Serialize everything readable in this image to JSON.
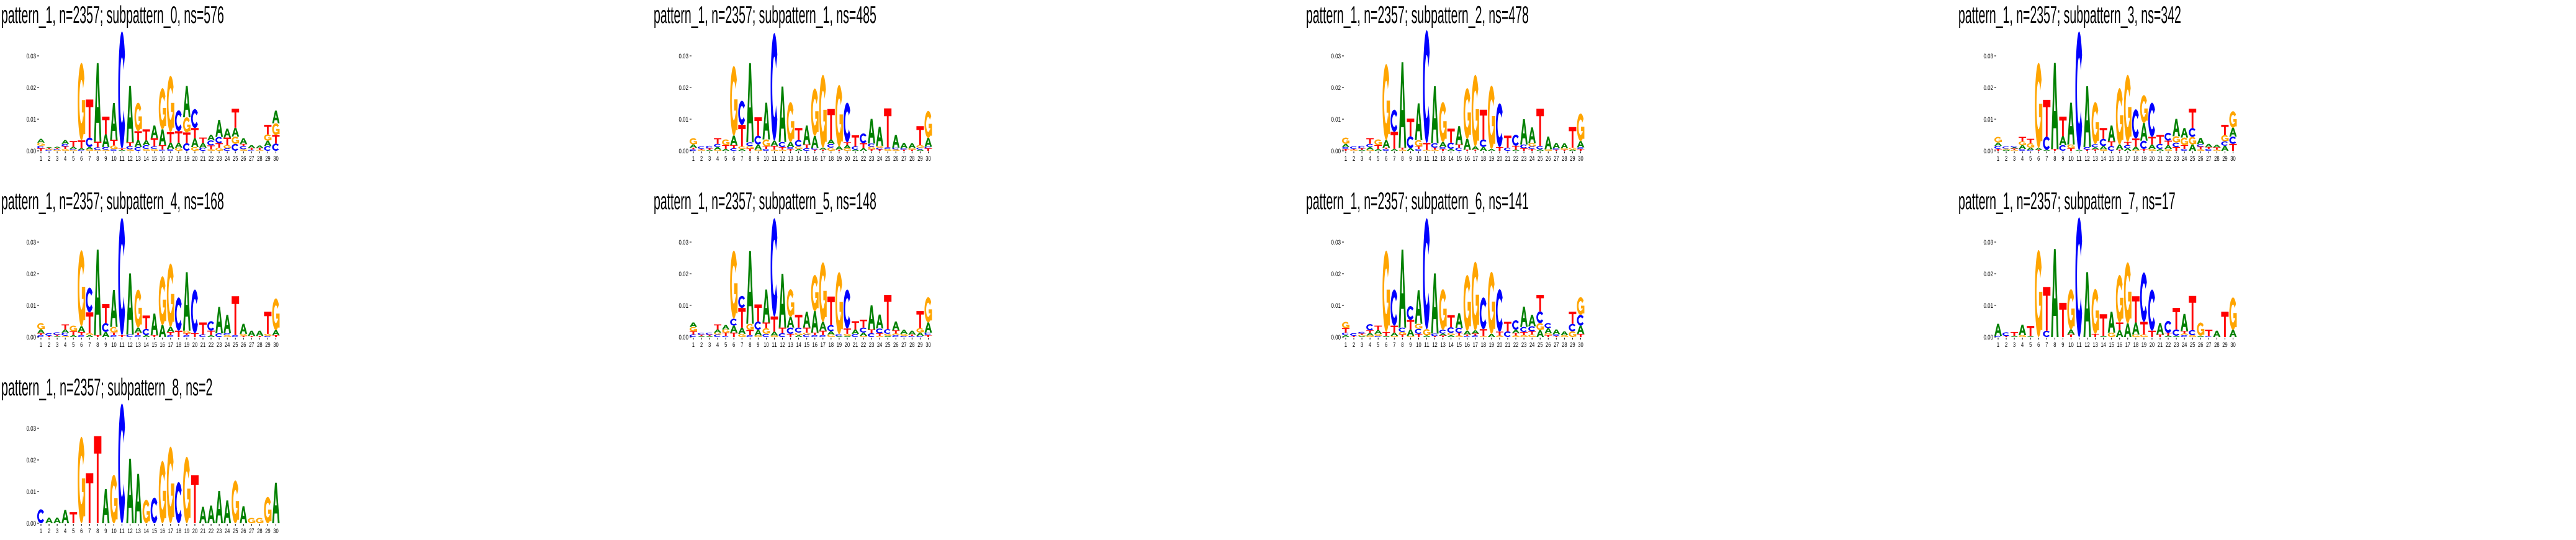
{
  "chart_data": {
    "type": "bar",
    "subtype": "stacked sequence logo",
    "value_unit": 0.001,
    "ylim": [
      0,
      0.038
    ],
    "yticks": [
      {
        "value": 0.0,
        "label": "0.00"
      },
      {
        "value": 0.01,
        "label": "0.01"
      },
      {
        "value": 0.02,
        "label": "0.02"
      },
      {
        "value": 0.03,
        "label": "0.03"
      }
    ],
    "xticks": [
      "1",
      "2",
      "3",
      "4",
      "5",
      "6",
      "7",
      "8",
      "9",
      "10",
      "11",
      "12",
      "13",
      "14",
      "15",
      "16",
      "17",
      "18",
      "19",
      "20",
      "21",
      "22",
      "23",
      "24",
      "25",
      "26",
      "27",
      "28",
      "29",
      "30"
    ],
    "colors": {
      "A": "#008000",
      "C": "#0000ff",
      "G": "#ffa500",
      "T": "#ff0000"
    },
    "panels": [
      {
        "title": "pattern_1, n=2357; subpattern_0, ns=576",
        "stacks": [
          "T0.8,C0.8,G1,A1.2",
          "C0.3,G0.3,T0.3,A0.3",
          "G0.3,C0.3,T0.3,A0.4",
          "G0.6,T0.8,C0.8,A1.2",
          "G0.3,C0.3,A0.7,T1.8",
          "C0.3,A0.5,T2.5,G24.5",
          "G0.5,A0.7,C3,T12",
          "G0.3,C0.8,T1.8,A24.8",
          "G0.4,C0.8,A4,T5.6",
          "C0.5,G1.2,T1.8,A11.6",
          "A0.3,T0.4,C37",
          "G0.5,C1,T1.2,A17.8",
          "C1.2,A2.2,T2.8,G9",
          "G0.6,C1.2,A1.5,T3.5",
          "G0.6,C0.8,T2.6,A4",
          "C0.4,T1.4,A5,G13",
          "C0.6,A2,T3.3,G17.8",
          "G1,A1.6,T3.6,C6.6",
          "C2.4,T3.4,G4.8,A9.9",
          "G1.2,A2.8,T3.2,C6",
          "C1,A1.5,T1.7",
          "G0.5,T1.2,C1.6,A1.8",
          "G1,T1.4,C2,A5.4",
          "C0.8,G1,T2.4,A2.8",
          "C2.2,G2.3,A2.8,T6",
          "G0.5,C1,T0.7,A1.8",
          "C0.3,T0.6,A0.9",
          "G0.3,T0.6,A0.8",
          "C1.5,A1.7,G2,T3",
          "C2.3,T2.7,G3.7,A4"
        ]
      },
      {
        "title": "pattern_1, n=2357; subpattern_1, ns=485",
        "stacks": [
          "C0.5,T0.5,A1,G2",
          "G0.3,T0.3,C0.8",
          "A0.3,T0.5,C0.8",
          "G0.4,A0.8,C1,T1.8",
          "A0.6,T1.2,G1.8",
          "C0.8,T1,A3,G22",
          "A0.6,G0.8,T6.8,C7.6",
          "T0.7,G0.8,C1.2,A25",
          "G0.4,A1.6,C2.8,T5.8",
          "C0.6,T0.8,G2.2,A11.6",
          "G0.4,T1.2,A1.6,C34",
          "G0.4,T0.8,C1.6,A17.5",
          "T0.6,C0.6,A1.6,G12.6",
          "A0.6,G0.8,C2,T3.8",
          "C0.8,T1.2,A6",
          "T0.4,C0.5,A3.8,G15",
          "T0.4,A0.6,G23",
          "G1,C1.2,A1.4,T9.6",
          "T0.4,A1,G19.4",
          "G0.8,A1,T0.9,C12.5",
          "A0.4,C1,T3.5",
          "A0.8,T1.6,C3.1",
          "T0.5,G0.8,C1,A7.8",
          "T0.5,C0.5,G0.6,A6",
          "G0.6,C0.5,T12.3",
          "G0.5,C0.5,A4",
          "T0.4,C0.4,A1.7",
          "T0.4,G0.4,A1.6",
          "A0.4,C0.6,G0.8,T6",
          "T0.8,C0.5,A2.8,G8.5"
        ]
      },
      {
        "title": "pattern_1, n=2357; subpattern_2, ns=478",
        "stacks": [
          "T0.6,C0.6,A1,G2",
          "G0.3,T0.3,C0.8",
          "A0.3,T0.5,C0.8",
          "G0.4,A0.8,C1,T1.8",
          "A0.6,T1.2,G1.8",
          "C0.6,T0.4,A2.4,G24",
          "A0.6,T5.4,C7",
          "G0.4,T0.6,A27",
          "A0.8,C3.8,T5.6",
          "C0.6,T0.8,G2,A11.6",
          "G0.3,T2.2,C35.6",
          "G0.4,T0.6,C1.4,A18",
          "T0.6,C0.6,A1.6,G12.6",
          "A0.6,C2,T4.4",
          "C1,T1,A5.8",
          "T0.4,A3.4,G16",
          "T0.4,A1,G22.6",
          "A1.2,C2.4,T9.4",
          "A0.6,G20",
          "T1.2,C13.8",
          "C1,T3.8",
          "A0.4,T1.2,C3.5",
          "T0.8,C1.2,A8",
          "T0.6,C0.8,G1,A5",
          "A0.5,C1,T11.8",
          "G0.5,A4",
          "T0.4,C0.4,A1.7",
          "T0.4,G0.4,A1.6",
          "A0.4,G0.6,T6.5",
          "T0.6,C0.5,A2,G8.7"
        ]
      },
      {
        "title": "pattern_1, n=2357; subpattern_3, ns=342",
        "stacks": [
          "T0.6,C1,A1,G1.8",
          "A0.4,G0.3,C0.7",
          "G0.3,T0.4,A0.4,C0.4",
          "C0.6,A1.2,G1.2,T1.4",
          "C0.3,A0.7,G1.4,T1.4",
          "T0.3,A0.6,G26.9",
          "A0.3,C4.2,T11.6",
          "T0.6,A27.2",
          "C1.8,A2.8,T6.2",
          "T0.8,G1.2,A13.2",
          "A0.3,C37.4",
          "T0.4,C0.8,A19.2",
          "T0.5,A0.6,C1,G13.3",
          "G0.5,A1,C2.3,T3.4",
          "C1.5,T1.5,A5",
          "T0.4,A1.6,G17.8",
          "A0.8,C1,T1,G21.2",
          "G0.3,A1,T2.6,C9.2",
          "T0.6,C2.6,A5.6,G8.8",
          "G0.6,A1.4,T2.4,C10.8",
          "A0.6,C1.6,T2.8",
          "G0.6,A1.2,T1.4,C2.5",
          "T1.2,C1.4,G2,A5.5",
          "C0.6,T1.2,G2.4,A3",
          "A2,G2.4,C2.8,T6.1",
          "G0.5,T0.8,C0.8,A2",
          "C0.6,T0.6,A1",
          "G0.4,T0.7,A0.8",
          "A1.6,C1.4,G2,T3.2",
          "T2.2,C2.3,A2.8,G5.2"
        ]
      },
      {
        "title": "pattern_1, n=2357; subpattern_4, ns=168",
        "stacks": [
          "C0.6,T0.6,A1.2,G2",
          "T0.4,C0.8",
          "A0.3,T0.4,C0.8",
          "G0.4,C1,A1,T1.6",
          "A0.6,T1.2,G1.8",
          "C0.6,T1,A1.8,G24",
          "A0.6,G0.6,T6.6,C7.8",
          "T0.6,A27",
          "A1.6,C2.8,T6",
          "C0.6,T0.8,G1.8,A11.7",
          "T0.6,C37",
          "C0.8,A19.3",
          "C0.6,T0.8,A1.6,G12",
          "A0.6,C2,T4.2",
          "T0.6,A6.8",
          "A3.8,G15.4",
          "C0.6,T1,A1.6,G20",
          "T2,C10.5",
          "C0.6,T0.6,G0.8,A18.5",
          "T1.2,C13.8",
          "C0.8,T3.8",
          "A0.6,T1.4,C3",
          "C1.2,A8.3",
          "G0.6,C0.6,A5.8",
          "C0.6,T12.3",
          "T0.4,G0.6,A3.2",
          "T0.4,A1.6",
          "T0.4,A1.6",
          "C0.4,G0.6,T7",
          "T0.6,A1.6,G10"
        ]
      },
      {
        "title": "pattern_1, n=2357; subpattern_5, ns=148",
        "stacks": [
          "C0.8,T1,G1.4,A1.4",
          "A0.3,T0.4,C0.6",
          "A0.3,T0.4,C0.7",
          "C0.8,G0.6,A1,T1.6",
          "C0.4,T1,G1,A1.4",
          "T1.4,A2.2,C2.2,G21.5",
          "G1,A2,T6.2,C3.8",
          "C0.6,T1.6,G2,A23",
          "G0.5,A1.8,C2.6,T5.4",
          "C1,G1.8,T1.8,A10.4",
          "G0.5,A1.2,T4.8,C31",
          "C1.2,T1.8,A17",
          "T1,C2,A3.4,G8.7",
          "A0.6,G0.8,C1.6,T4",
          "C0.8,G0.6,T1.6,A5",
          "C0.6,T0.8,A6.8,G11.4",
          "C0.6,T1.4,A2.8,G18.8",
          "G0.8,A1,C2,T9",
          "A0.3,C0.6,G19.6",
          "A0.4,G0.6,T1.7,C12.3",
          "C1,A1.4,T2.6",
          "G0.4,A1,C1.6,T2.5",
          "C1.2,T1.2,A7.6",
          "G0.4,T0.8,C1.5,A4.4",
          "A0.4,G0.6,C1.5,T10.8",
          "C0.6,G0.5,T1,A2.8",
          "C0.4,G0.6,A1.3",
          "C0.4,T0.4,A1.2",
          "C0.4,A1,G1.4,T5.4",
          "T0.6,C0.8,A3.2,G8"
        ]
      },
      {
        "title": "pattern_1, n=2357; subpattern_6, ns=141",
        "stacks": [
          "A0.6,C0.8,T1.4,G2",
          "T0.4,C0.8",
          "A0.3,G0.4,T0.4,C0.5",
          "G0.5,A0.8,T0.8,C2",
          "C0.4,G0.6,A1.2,T1.4",
          "A0.4,T1.2,G25.7",
          "G0.4,A1,T2.2,C11.4",
          "T0.8,G0.8,C1.4,A24.6",
          "G0.4,A2,T3,C4.4",
          "T1,C1.6,G1.6,A10.6",
          "A0.5,G2,C35",
          "T0.3,C0.8,A19",
          "T0.5,A0.6,C1.2,G12.8",
          "A0.6,G0.7,C1.8,T3.8",
          "G0.5,T0.8,C1.6,A4.6",
          "C0.4,T0.4,A1.2,G17.6",
          "C0.5,T0.6,A1,G21.7",
          "G0.3,T2.2,C10",
          "A1,G19.6",
          "G0.5,T1.2,C13.4",
          "C1.8,T3",
          "G0.5,T0.8,A1,C3",
          "G0.6,T1,C1.6,A6.4",
          "G0.8,T1,C1.6,A3.6",
          "A2.2,G2.2,C3.7,T5.2",
          "T0.6,G0.6,A1.6,C1.6",
          "T0.4,C0.5,A1.5",
          "G0.6,A1.2",
          "G1.8,C2.4,T3.8",
          "T1,A2.6,C3.4,G5.6"
        ]
      },
      {
        "title": "pattern_1, n=2357; subpattern_7, ns=17",
        "stacks": [
          "C0.4,A3.8",
          "T0.3,C1.2",
          "A0.4,T1.2",
          "G0.6,A3.3",
          "A0.3,T3.2",
          "G27.5",
          "C2,T13.8",
          "A27.8",
          "T10.8",
          "T0.8,A1.6,G12.7",
          "C37.8",
          "A20.5",
          "T1,G14.2",
          "A0.4,T6.8",
          "G1.4,A6.6",
          "A2.2,T2.4,G15",
          "A4.3,G19.3",
          "G0.8,A3.8,T8.3",
          "G0.8,T4,C15.6",
          "T2,C13",
          "T0.8,A3.6",
          "A0.5,T0.8,C3.8",
          "A0.4,C2,T6.8",
          "C0.6,G0.5,T0.8,A5.4",
          "G0.6,C1.6,T10.8",
          "A0.4,G4.2",
          "C0.3,T2",
          "A2",
          "T8",
          "A2.3,G10.2"
        ]
      },
      {
        "title": "pattern_1, n=2357; subpattern_8, ns=2",
        "stacks": [
          "C4.4",
          "A1.8",
          "A1.8",
          "A4.2",
          "T3.5",
          "G27.3",
          "T15.8",
          "T27.5",
          "A10.8",
          "G15.3",
          "C37.8",
          "A20.4",
          "A15.6",
          "G7.4",
          "C8.1",
          "G19.7",
          "G24.2",
          "C13",
          "G21",
          "T15.2",
          "A5.2",
          "A5.6",
          "A10.2",
          "A7.2",
          "G13.5",
          "A5.4",
          "G1.7",
          "G1.7",
          "G8.3",
          "A12.8"
        ]
      }
    ]
  }
}
